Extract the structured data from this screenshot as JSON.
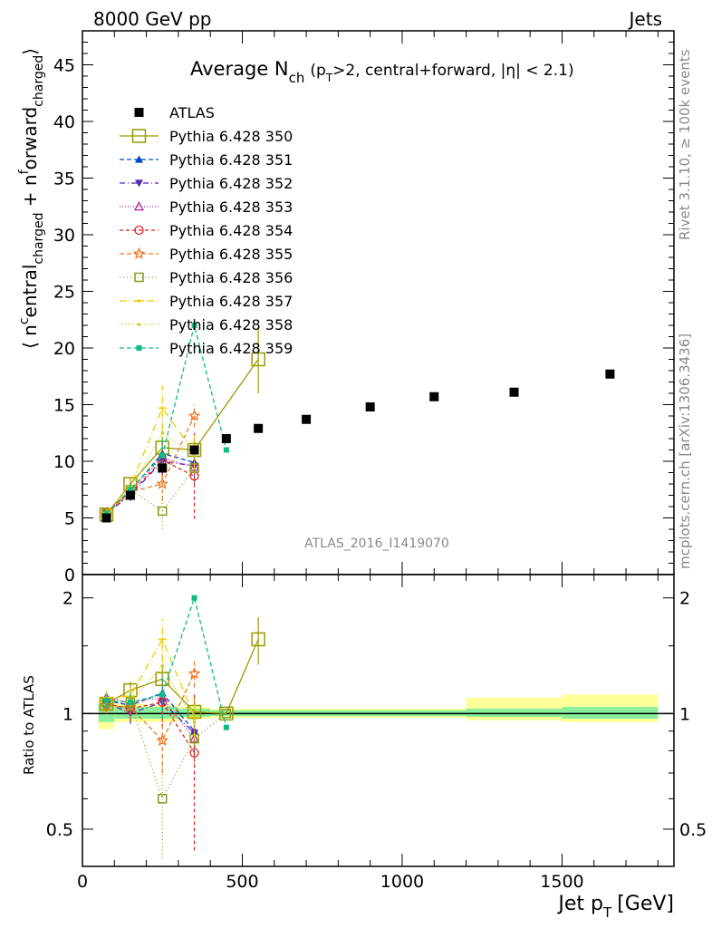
{
  "header": {
    "energy": "8000 GeV pp",
    "process": "Jets"
  },
  "side_labels": {
    "rivet": "Rivet 3.1.10, ≥ 100k events",
    "mcplots": "mcplots.cern.ch [arXiv:1306.3436]"
  },
  "analysis_id": "ATLAS_2016_I1419070",
  "chart_data": [
    {
      "type": "scatter",
      "panel": "main",
      "title_main": "Average N",
      "title_sub": "ch",
      "title_rest": "(p",
      "title_rest_sub": "T",
      "title_tail": ">2, central+forward, |η| < 2.1)",
      "ylabel_parts": [
        "⟨ n",
        "c",
        "entral",
        "charged",
        " + n",
        "f",
        "orward",
        "charged",
        "⟩"
      ],
      "xlabel": "",
      "xlim": [
        0,
        1850
      ],
      "ylim": [
        0,
        48
      ],
      "yticks": [
        0,
        5,
        10,
        15,
        20,
        25,
        30,
        35,
        40,
        45
      ],
      "grid": false,
      "legend_position": "top-left",
      "atlas": {
        "name": "ATLAS",
        "x": [
          75,
          150,
          250,
          350,
          450,
          550,
          700,
          900,
          1100,
          1350,
          1650
        ],
        "y": [
          5.0,
          7.0,
          9.4,
          11.0,
          12.0,
          12.9,
          13.7,
          14.8,
          15.7,
          16.1,
          17.7
        ]
      },
      "series": [
        {
          "name": "Pythia 6.428 350",
          "color": "#999900",
          "marker": "open-square",
          "dash": "",
          "x": [
            75,
            150,
            250,
            350,
            550
          ],
          "y": [
            5.3,
            8.0,
            11.2,
            11.0,
            19.0
          ],
          "err": [
            0.3,
            0.5,
            1.0,
            1.0,
            3.0
          ],
          "big": true
        },
        {
          "name": "Pythia 6.428 351",
          "color": "#0044cc",
          "marker": "triangle-up",
          "dash": "5,3",
          "x": [
            75,
            150,
            250,
            350
          ],
          "y": [
            5.4,
            7.4,
            10.7,
            9.9
          ],
          "err": [
            0.3,
            0.5,
            1.2,
            1.5
          ]
        },
        {
          "name": "Pythia 6.428 352",
          "color": "#5522bb",
          "marker": "triangle-down",
          "dash": "6,3,1,3",
          "x": [
            75,
            150,
            250,
            350
          ],
          "y": [
            5.4,
            7.0,
            10.0,
            9.6
          ],
          "err": [
            0.3,
            0.5,
            1.2,
            1.5
          ]
        },
        {
          "name": "Pythia 6.428 353",
          "color": "#bb2299",
          "marker": "open-triangle",
          "dash": "1,2",
          "x": [
            75,
            150,
            250,
            350
          ],
          "y": [
            5.5,
            7.5,
            10.3,
            9.5
          ],
          "err": [
            0.3,
            0.5,
            1.2,
            1.5
          ]
        },
        {
          "name": "Pythia 6.428 354",
          "color": "#dd2222",
          "marker": "open-circle",
          "dash": "4,3",
          "x": [
            75,
            150,
            250,
            350
          ],
          "y": [
            5.4,
            7.2,
            10.1,
            8.7
          ],
          "err": [
            0.3,
            0.6,
            1.5,
            3.8
          ]
        },
        {
          "name": "Pythia 6.428 355",
          "color": "#ee7722",
          "marker": "open-star",
          "dash": "5,3",
          "x": [
            75,
            150,
            250,
            350
          ],
          "y": [
            5.3,
            7.3,
            8.0,
            14.0
          ],
          "err": [
            0.3,
            0.5,
            1.5,
            1.0
          ]
        },
        {
          "name": "Pythia 6.428 356",
          "color": "#889922",
          "marker": "open-square",
          "dash": "1,3",
          "x": [
            75,
            150,
            250,
            350
          ],
          "y": [
            5.4,
            7.5,
            5.6,
            9.4
          ],
          "err": [
            0.3,
            0.5,
            1.6,
            1.5
          ]
        },
        {
          "name": "Pythia 6.428 357",
          "color": "#eecc00",
          "marker": "tick",
          "dash": "8,3,1,3",
          "x": [
            75,
            150,
            250,
            350
          ],
          "y": [
            5.5,
            7.8,
            14.7,
            10.8
          ],
          "err": [
            0.3,
            0.5,
            2.0,
            1.5
          ]
        },
        {
          "name": "Pythia 6.428 358",
          "color": "#cccc22",
          "marker": "dot",
          "dash": "1,2",
          "x": [
            75,
            150,
            250,
            350
          ],
          "y": [
            5.4,
            7.5,
            12.5,
            10.5
          ],
          "err": [
            0.3,
            0.5,
            1.8,
            1.5
          ]
        },
        {
          "name": "Pythia 6.428 359",
          "color": "#11bb88",
          "marker": "small-square",
          "dash": "5,3",
          "x": [
            75,
            150,
            250,
            350,
            450
          ],
          "y": [
            5.4,
            7.5,
            10.5,
            22.0,
            11.0
          ],
          "err": [
            0.3,
            0.5,
            1.5,
            0,
            0
          ]
        }
      ]
    },
    {
      "type": "scatter",
      "panel": "ratio",
      "ylabel": "Ratio to ATLAS",
      "xlabel": "Jet p_T [GeV]",
      "xlabel_main": "Jet p",
      "xlabel_sub": "T",
      "xlabel_unit": "[GeV]",
      "xlim": [
        0,
        1850
      ],
      "xticks": [
        0,
        500,
        1000,
        1500
      ],
      "ylim": [
        0.4,
        2.3
      ],
      "yticks": [
        0.5,
        1,
        2
      ],
      "yticklabels": [
        "0.5",
        "1",
        "2"
      ],
      "bands": [
        {
          "x0": 50,
          "x1": 100,
          "lo1": 0.95,
          "hi1": 1.06,
          "lo2": 0.91,
          "hi2": 1.1
        },
        {
          "x0": 100,
          "x1": 200,
          "lo1": 0.97,
          "hi1": 1.04,
          "lo2": 0.95,
          "hi2": 1.06
        },
        {
          "x0": 200,
          "x1": 300,
          "lo1": 0.97,
          "hi1": 1.04,
          "lo2": 0.95,
          "hi2": 1.05
        },
        {
          "x0": 300,
          "x1": 400,
          "lo1": 0.98,
          "hi1": 1.03,
          "lo2": 0.97,
          "hi2": 1.04
        },
        {
          "x0": 400,
          "x1": 1200,
          "lo1": 0.985,
          "hi1": 1.02,
          "lo2": 0.975,
          "hi2": 1.03
        },
        {
          "x0": 1200,
          "x1": 1500,
          "lo1": 0.98,
          "hi1": 1.03,
          "lo2": 0.96,
          "hi2": 1.1
        },
        {
          "x0": 1500,
          "x1": 1800,
          "lo1": 0.97,
          "hi1": 1.04,
          "lo2": 0.95,
          "hi2": 1.12
        }
      ],
      "series": [
        {
          "name": "Pythia 6.428 350",
          "x": [
            75,
            150,
            250,
            350,
            450,
            550
          ],
          "y": [
            1.06,
            1.15,
            1.23,
            1.01,
            1.0,
            1.56
          ],
          "err": [
            0.05,
            0.06,
            0.1,
            0.1,
            0,
            0.22
          ]
        },
        {
          "name": "Pythia 6.428 351",
          "x": [
            75,
            150,
            250,
            350
          ],
          "y": [
            1.08,
            1.05,
            1.13,
            0.9
          ],
          "err": [
            0.05,
            0.06,
            0.12,
            0.12
          ]
        },
        {
          "name": "Pythia 6.428 352",
          "x": [
            75,
            150,
            250,
            350
          ],
          "y": [
            1.07,
            1.0,
            1.07,
            0.89
          ],
          "err": [
            0.05,
            0.06,
            0.12,
            0.12
          ]
        },
        {
          "name": "Pythia 6.428 353",
          "x": [
            75,
            150,
            250,
            350
          ],
          "y": [
            1.1,
            1.07,
            1.1,
            0.86
          ],
          "err": [
            0.05,
            0.06,
            0.12,
            0.12
          ]
        },
        {
          "name": "Pythia 6.428 354",
          "x": [
            75,
            150,
            250,
            350
          ],
          "y": [
            1.06,
            1.03,
            1.07,
            0.79
          ],
          "err": [
            0.05,
            0.07,
            0.15,
            0.35
          ]
        },
        {
          "name": "Pythia 6.428 355",
          "x": [
            75,
            150,
            250,
            350
          ],
          "y": [
            1.05,
            1.04,
            0.85,
            1.27
          ],
          "err": [
            0.05,
            0.06,
            0.15,
            0.1
          ]
        },
        {
          "name": "Pythia 6.428 356",
          "x": [
            75,
            150,
            250,
            350,
            450
          ],
          "y": [
            1.07,
            1.07,
            0.6,
            0.86,
            1.0
          ],
          "err": [
            0.05,
            0.06,
            0.18,
            0.12,
            0
          ]
        },
        {
          "name": "Pythia 6.428 357",
          "x": [
            75,
            150,
            250,
            350
          ],
          "y": [
            1.1,
            1.11,
            1.56,
            0.98
          ],
          "err": [
            0.05,
            0.06,
            0.2,
            0.12
          ]
        },
        {
          "name": "Pythia 6.428 358",
          "x": [
            75,
            150,
            250,
            350
          ],
          "y": [
            1.08,
            1.07,
            1.33,
            0.95
          ],
          "err": [
            0.05,
            0.06,
            0.18,
            0.12
          ]
        },
        {
          "name": "Pythia 6.428 359",
          "x": [
            75,
            150,
            250,
            350,
            450
          ],
          "y": [
            1.08,
            1.07,
            1.12,
            2.0,
            0.92
          ],
          "err": [
            0.05,
            0.06,
            0.15,
            0,
            0
          ]
        }
      ]
    }
  ]
}
